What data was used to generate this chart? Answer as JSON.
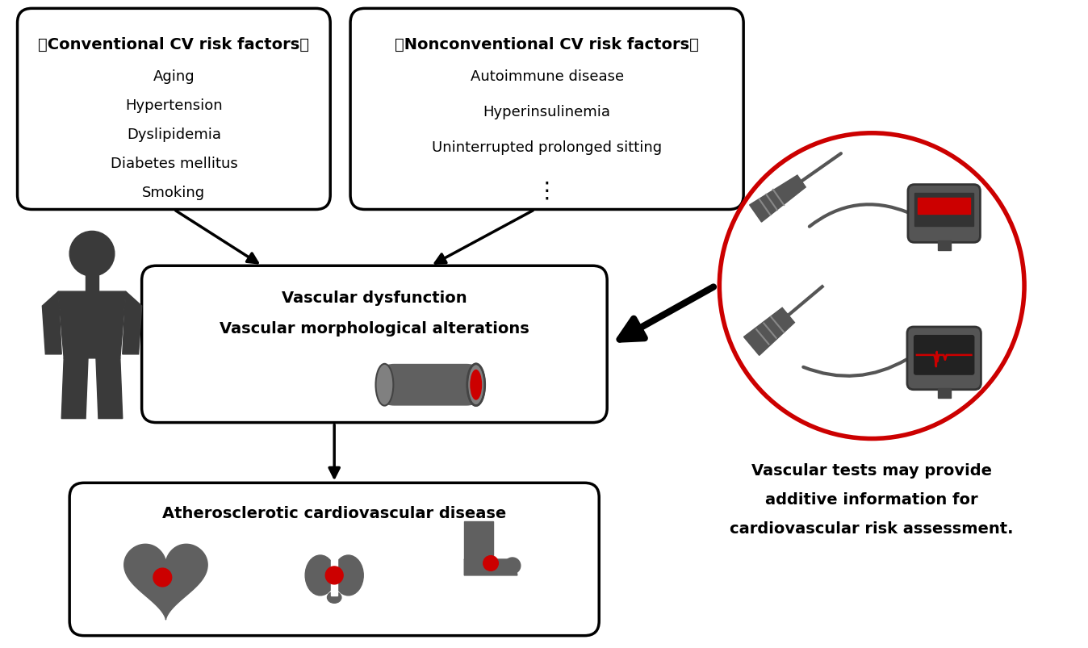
{
  "bg_color": "#ffffff",
  "box1_title": "》Conventional CV risk factors「",
  "box1_items": [
    "Aging",
    "Hypertension",
    "Dyslipidemia",
    "Diabetes mellitus",
    "Smoking"
  ],
  "box2_title": "》Nonconventional CV risk factors「",
  "box2_items": [
    "Autoimmune disease",
    "Hyperinsulinemia",
    "Uninterrupted prolonged sitting",
    "⋮"
  ],
  "box3_line1": "Vascular dysfunction",
  "box3_line2": "Vascular morphological alterations",
  "box4_text": "Atherosclerotic cardiovascular disease",
  "side_text_line1": "Vascular tests may provide",
  "side_text_line2": "additive information for",
  "side_text_line3": "cardiovascular risk assessment.",
  "text_color": "#000000",
  "box_edge_color": "#000000",
  "arrow_color": "#000000",
  "circle_color": "#cc0000",
  "red_color": "#cc0000",
  "dark_gray": "#3a3a3a",
  "medium_gray": "#555555",
  "icon_gray": "#606060"
}
